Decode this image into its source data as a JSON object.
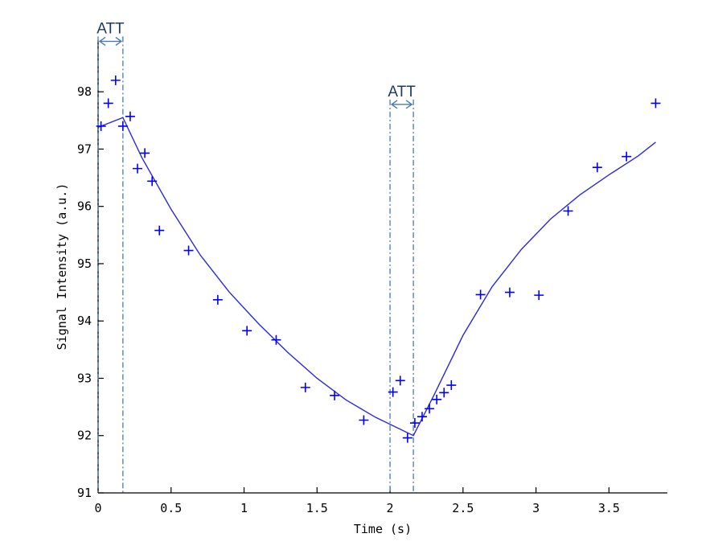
{
  "chart_data": {
    "type": "scatter",
    "title": "",
    "xlabel": "Time (s)",
    "ylabel": "Signal Intensity (a.u.)",
    "xlim": [
      0,
      3.9
    ],
    "ylim": [
      91,
      98.9
    ],
    "xticks": [
      0,
      0.5,
      1,
      1.5,
      2,
      2.5,
      3,
      3.5
    ],
    "xtick_labels": [
      "0",
      "0.5",
      "1",
      "1.5",
      "2",
      "2.5",
      "3",
      "3.5"
    ],
    "yticks": [
      91,
      92,
      93,
      94,
      95,
      96,
      97,
      98
    ],
    "ytick_labels": [
      "91",
      "92",
      "93",
      "94",
      "95",
      "96",
      "97",
      "98"
    ],
    "grid": false,
    "legend": "none",
    "colors": {
      "data": "#0000ff",
      "fit": "#2a2ad8",
      "annotation": "#4a7ab0"
    },
    "series": [
      {
        "kind": "scatter",
        "marker": "plus",
        "x": [
          0.02,
          0.07,
          0.12,
          0.17,
          0.22,
          0.27,
          0.32,
          0.37,
          0.42,
          0.62,
          0.82,
          1.02,
          1.22,
          1.42,
          1.62,
          1.82,
          2.02,
          2.07,
          2.12,
          2.17,
          2.22,
          2.27,
          2.32,
          2.37,
          2.42,
          2.62,
          2.82,
          3.02,
          3.22,
          3.42,
          3.62,
          3.82
        ],
        "y": [
          97.4,
          97.8,
          98.2,
          97.4,
          97.57,
          96.66,
          96.93,
          96.44,
          95.58,
          95.23,
          94.37,
          93.83,
          93.67,
          92.84,
          92.7,
          92.27,
          92.76,
          92.96,
          91.96,
          92.22,
          92.33,
          92.47,
          92.63,
          92.75,
          92.88,
          94.46,
          94.5,
          94.45,
          95.92,
          96.68,
          96.87,
          97.8
        ]
      },
      {
        "kind": "line",
        "x": [
          0.0,
          0.17,
          0.3,
          0.5,
          0.7,
          0.9,
          1.1,
          1.3,
          1.5,
          1.7,
          1.9,
          2.16,
          2.3,
          2.5,
          2.7,
          2.9,
          3.1,
          3.3,
          3.5,
          3.7,
          3.82
        ],
        "y": [
          97.38,
          97.55,
          96.85,
          95.95,
          95.15,
          94.5,
          93.95,
          93.45,
          93.0,
          92.62,
          92.32,
          92.0,
          92.7,
          93.75,
          94.6,
          95.25,
          95.78,
          96.2,
          96.55,
          96.88,
          97.12
        ]
      }
    ],
    "annotations": [
      {
        "label": "ATT",
        "x_start": 0.0,
        "x_end": 0.17,
        "y": 98.88
      },
      {
        "label": "ATT",
        "x_start": 2.0,
        "x_end": 2.16,
        "y": 97.78
      }
    ]
  }
}
